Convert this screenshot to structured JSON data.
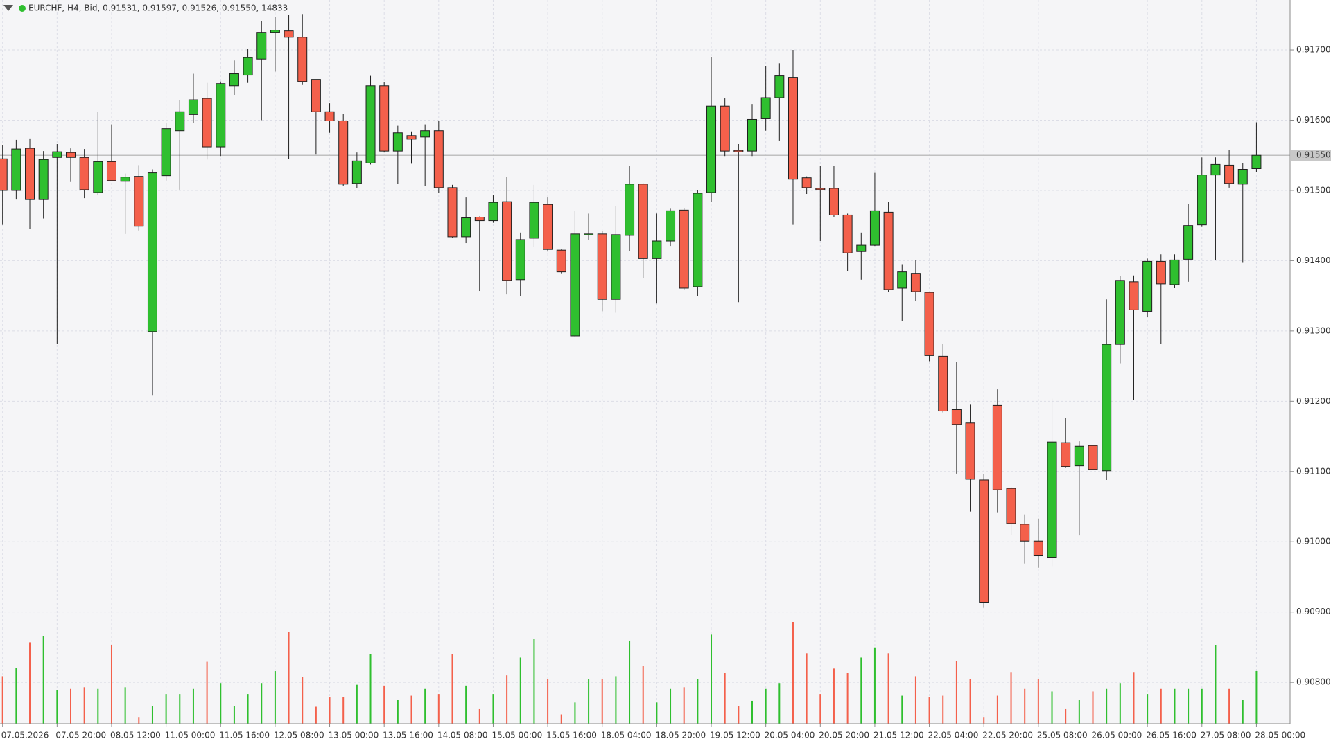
{
  "chart_data": {
    "type": "candlestick",
    "title": "EURCHF, H4, Bid, 0.91531, 0.91597, 0.91526, 0.91550, 14833",
    "categories": [
      "07.05.2026",
      null,
      null,
      null,
      "07.05 20:00",
      null,
      null,
      null,
      "08.05 12:00",
      null,
      null,
      null,
      "11.05 00:00",
      null,
      null,
      null,
      "11.05 16:00",
      null,
      null,
      null,
      "12.05 08:00",
      null,
      null,
      null,
      "13.05 00:00",
      null,
      null,
      null,
      "13.05 16:00",
      null,
      null,
      null,
      "14.05 08:00",
      null,
      null,
      null,
      "15.05 00:00",
      null,
      null,
      null,
      "15.05 16:00",
      null,
      null,
      null,
      "18.05 04:00",
      null,
      null,
      null,
      "18.05 20:00",
      null,
      null,
      null,
      "19.05 12:00",
      null,
      null,
      null,
      "20.05 04:00",
      null,
      null,
      null,
      "20.05 20:00",
      null,
      null,
      null,
      "21.05 12:00",
      null,
      null,
      null,
      "22.05 04:00",
      null,
      null,
      null,
      "22.05 20:00",
      null,
      null,
      null,
      "25.05 08:00",
      null,
      null,
      null,
      "26.05 00:00",
      null,
      null,
      null,
      "26.05 16:00",
      null,
      null,
      null,
      "27.05 08:00",
      null,
      null,
      null,
      "28.05 00:00"
    ],
    "open": [
      0.91545,
      0.915,
      0.9156,
      0.91487,
      0.91547,
      0.91554,
      0.91547,
      0.91497,
      0.91541,
      0.91513,
      0.9152,
      0.91299,
      0.91521,
      0.91585,
      0.91608,
      0.91631,
      0.91562,
      0.91649,
      0.91664,
      0.91687,
      0.91725,
      0.91727,
      0.91718,
      0.91658,
      0.91612,
      0.91599,
      0.9151,
      0.91539,
      0.91649,
      0.91556,
      0.91578,
      0.91576,
      0.91585,
      0.91504,
      0.91434,
      0.91462,
      0.91457,
      0.91484,
      0.91373,
      0.91432,
      0.9148,
      0.91415,
      0.91293,
      0.91437,
      0.91438,
      0.91345,
      0.91436,
      0.91509,
      0.91403,
      0.91428,
      0.91472,
      0.91363,
      0.91497,
      0.9162,
      0.91557,
      0.91556,
      0.91602,
      0.91632,
      0.91661,
      0.91518,
      0.91503,
      0.91503,
      0.91465,
      0.91413,
      0.91422,
      0.91469,
      0.91361,
      0.91382,
      0.91355,
      0.91264,
      0.91188,
      0.91169,
      0.91088,
      0.91194,
      0.91076,
      0.91025,
      0.91001,
      0.90978,
      0.91141,
      0.91108,
      0.91137,
      0.91101,
      0.91281,
      0.9137,
      0.91328,
      0.91399,
      0.91366,
      0.91402,
      0.91451,
      0.91522,
      0.91536,
      0.91509,
      0.91531
    ],
    "high": [
      0.91564,
      0.91572,
      0.91574,
      0.91556,
      0.91566,
      0.9156,
      0.91559,
      0.91612,
      0.91594,
      0.91524,
      0.91536,
      0.9153,
      0.91596,
      0.91629,
      0.91666,
      0.91653,
      0.91655,
      0.91685,
      0.91701,
      0.91741,
      0.91747,
      0.9175,
      0.91751,
      0.91658,
      0.91624,
      0.91609,
      0.91554,
      0.91663,
      0.91654,
      0.91592,
      0.91584,
      0.91594,
      0.91599,
      0.91508,
      0.9149,
      0.91463,
      0.91493,
      0.91519,
      0.9144,
      0.91508,
      0.9149,
      0.91416,
      0.91471,
      0.91467,
      0.91442,
      0.91478,
      0.91535,
      0.9151,
      0.91467,
      0.91474,
      0.91475,
      0.915,
      0.9169,
      0.91631,
      0.91566,
      0.91623,
      0.91677,
      0.91681,
      0.917,
      0.9152,
      0.91535,
      0.91535,
      0.91467,
      0.9144,
      0.91525,
      0.91484,
      0.91395,
      0.91401,
      0.91356,
      0.91282,
      0.91256,
      0.91195,
      0.91096,
      0.91217,
      0.91078,
      0.91039,
      0.91033,
      0.91204,
      0.91176,
      0.91143,
      0.9118,
      0.91345,
      0.91378,
      0.91379,
      0.91403,
      0.91409,
      0.91409,
      0.91481,
      0.91547,
      0.91547,
      0.91558,
      0.91539,
      0.91597
    ],
    "low": [
      0.91451,
      0.91487,
      0.91445,
      0.9146,
      0.91282,
      0.91512,
      0.91489,
      0.91493,
      0.91514,
      0.91438,
      0.91443,
      0.91208,
      0.91514,
      0.91501,
      0.91596,
      0.91544,
      0.91549,
      0.91636,
      0.91653,
      0.916,
      0.91669,
      0.91545,
      0.9165,
      0.91551,
      0.91582,
      0.91506,
      0.91503,
      0.91537,
      0.91554,
      0.91509,
      0.91538,
      0.91506,
      0.91496,
      0.91433,
      0.91425,
      0.91357,
      0.91454,
      0.91352,
      0.9135,
      0.91419,
      0.91413,
      0.91382,
      0.91292,
      0.9143,
      0.91328,
      0.91326,
      0.91414,
      0.91375,
      0.91339,
      0.91421,
      0.91358,
      0.9135,
      0.91484,
      0.91549,
      0.91341,
      0.91549,
      0.91585,
      0.91571,
      0.91451,
      0.91495,
      0.91428,
      0.91462,
      0.91385,
      0.91373,
      0.91421,
      0.91356,
      0.91314,
      0.91343,
      0.91257,
      0.91184,
      0.91097,
      0.91043,
      0.90906,
      0.91042,
      0.9101,
      0.90969,
      0.90963,
      0.90965,
      0.91105,
      0.91009,
      0.911,
      0.91088,
      0.91254,
      0.91202,
      0.9132,
      0.91282,
      0.91361,
      0.9137,
      0.91448,
      0.91401,
      0.91504,
      0.91397,
      0.91526
    ],
    "close": [
      0.915,
      0.91559,
      0.91487,
      0.91544,
      0.91555,
      0.91547,
      0.91501,
      0.91541,
      0.91514,
      0.91519,
      0.91449,
      0.91525,
      0.91588,
      0.91612,
      0.91629,
      0.91562,
      0.91652,
      0.91666,
      0.91689,
      0.91725,
      0.91728,
      0.91718,
      0.91655,
      0.91612,
      0.91599,
      0.91509,
      0.91542,
      0.91649,
      0.91556,
      0.91582,
      0.91573,
      0.91585,
      0.91504,
      0.91434,
      0.91461,
      0.91457,
      0.91483,
      0.91372,
      0.9143,
      0.91483,
      0.91416,
      0.91384,
      0.91438,
      0.91438,
      0.91345,
      0.91437,
      0.91509,
      0.91403,
      0.91428,
      0.91471,
      0.91361,
      0.91496,
      0.9162,
      0.91556,
      0.91555,
      0.91601,
      0.91632,
      0.91663,
      0.91516,
      0.91504,
      0.91501,
      0.91465,
      0.91411,
      0.91422,
      0.91471,
      0.91359,
      0.91384,
      0.91356,
      0.91265,
      0.91186,
      0.91167,
      0.91089,
      0.90914,
      0.91074,
      0.91026,
      0.91001,
      0.9098,
      0.91142,
      0.91107,
      0.91136,
      0.91103,
      0.91281,
      0.91372,
      0.9133,
      0.91399,
      0.91367,
      0.91401,
      0.9145,
      0.91522,
      0.91537,
      0.9151,
      0.9153,
      0.9155
    ],
    "volumes": [
      13380,
      15770,
      22940,
      24620,
      9560,
      9800,
      10280,
      9800,
      22230,
      10280,
      1910,
      5020,
      8370,
      8370,
      9800,
      17450,
      11470,
      5020,
      8370,
      11470,
      14820,
      25810,
      13150,
      4780,
      7410,
      7410,
      10990,
      19600,
      10760,
      6690,
      7890,
      9800,
      8370,
      19600,
      10760,
      4300,
      8370,
      13620,
      18640,
      23900,
      12670,
      2630,
      5980,
      12670,
      12670,
      13380,
      23420,
      16250,
      5980,
      9800,
      10280,
      12670,
      25100,
      14340,
      5020,
      6450,
      9800,
      11470,
      28680,
      19840,
      8370,
      15540,
      14340,
      18640,
      21510,
      19840,
      7890,
      13380,
      7410,
      7890,
      17690,
      12670,
      1910,
      7890,
      14580,
      9800,
      12670,
      9080,
      4300,
      6690,
      9080,
      9800,
      11470,
      14580,
      8370,
      9800,
      9800,
      9800,
      9800,
      22230,
      9800,
      6690,
      14833
    ],
    "ylim": [
      0.90741,
      0.91771
    ],
    "yticks": [
      {
        "value": 0.908,
        "label": "0.90800"
      },
      {
        "value": 0.909,
        "label": "0.90900"
      },
      {
        "value": 0.91,
        "label": "0.91000"
      },
      {
        "value": 0.911,
        "label": "0.91100"
      },
      {
        "value": 0.912,
        "label": "0.91200"
      },
      {
        "value": 0.913,
        "label": "0.91300"
      },
      {
        "value": 0.914,
        "label": "0.91400"
      },
      {
        "value": 0.915,
        "label": "0.91500"
      },
      {
        "value": 0.916,
        "label": "0.91600"
      },
      {
        "value": 0.917,
        "label": "0.91700"
      }
    ],
    "bid_line": {
      "value": 0.9155,
      "label": "0.91550"
    },
    "colors": {
      "up": "#2fbf2f",
      "down": "#f4604b",
      "outline": "#1f1f1f",
      "bid": "#c0c0c0"
    },
    "grid": true
  }
}
